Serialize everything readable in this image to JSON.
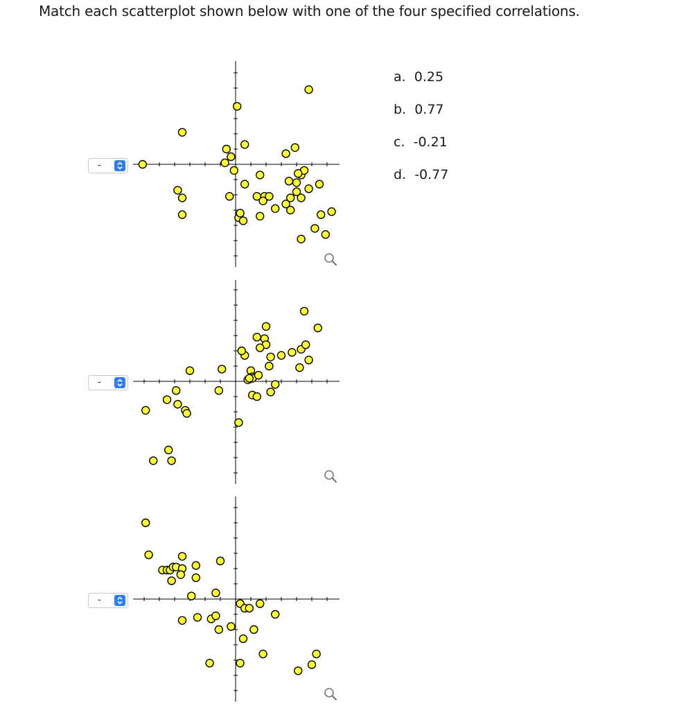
{
  "question": "Match each scatterplot shown below with one of the four specified correlations.",
  "options": [
    {
      "letter": "a.",
      "value": "0.25"
    },
    {
      "letter": "b.",
      "value": "0.77"
    },
    {
      "letter": "c.",
      "value": "-0.21"
    },
    {
      "letter": "d.",
      "value": "-0.77"
    }
  ],
  "selects": [
    {
      "selected": "-"
    },
    {
      "selected": "-"
    },
    {
      "selected": "-"
    }
  ],
  "icons": {
    "select_arrows": "up-down-chevron-icon",
    "magnify": "magnifier-icon"
  },
  "colors": {
    "point_fill": "#ffff33",
    "point_stroke": "#000000",
    "select_accent": "#2f7ef0",
    "axis": "#000000"
  },
  "chart_data": [
    {
      "type": "scatter",
      "grid": false,
      "points": [
        [
          -6.1,
          0
        ],
        [
          -3.5,
          2.1
        ],
        [
          -3.8,
          -1.7
        ],
        [
          -3.5,
          -2.2
        ],
        [
          -3.5,
          -3.3
        ],
        [
          0.1,
          3.8
        ],
        [
          0.6,
          1.3
        ],
        [
          -0.6,
          1
        ],
        [
          -0.3,
          0.5
        ],
        [
          -0.7,
          0.1
        ],
        [
          -0.1,
          -0.4
        ],
        [
          1.6,
          -0.7
        ],
        [
          0.6,
          -1.3
        ],
        [
          -0.4,
          -2.1
        ],
        [
          1.4,
          -2.1
        ],
        [
          1.9,
          -2.1
        ],
        [
          1.8,
          -2.4
        ],
        [
          2.2,
          -2.1
        ],
        [
          2.6,
          -2.9
        ],
        [
          3.6,
          -3
        ],
        [
          3.3,
          -2.6
        ],
        [
          3.6,
          -2.2
        ],
        [
          4,
          -1.8
        ],
        [
          4.3,
          -2.2
        ],
        [
          4.8,
          -1.6
        ],
        [
          5.5,
          -1.3
        ],
        [
          4,
          -1.2
        ],
        [
          3.5,
          -1.1
        ],
        [
          4.3,
          -0.7
        ],
        [
          4.5,
          -0.4
        ],
        [
          4.1,
          -0.6
        ],
        [
          3.3,
          0.7
        ],
        [
          3.9,
          1.1
        ],
        [
          4.8,
          4.9
        ],
        [
          0.2,
          -3.5
        ],
        [
          0.5,
          -3.7
        ],
        [
          1.6,
          -3.4
        ],
        [
          0.3,
          -3.2
        ],
        [
          5.2,
          -4.2
        ],
        [
          4.3,
          -4.9
        ],
        [
          5.6,
          -3.3
        ],
        [
          6.3,
          -3.1
        ],
        [
          5.9,
          -4.6
        ]
      ]
    },
    {
      "type": "scatter",
      "grid": false,
      "points": [
        [
          -5.9,
          -1.9
        ],
        [
          -4.5,
          -1.2
        ],
        [
          -3.8,
          -1.5
        ],
        [
          -3.3,
          -1.9
        ],
        [
          -3.2,
          -2.1
        ],
        [
          -4.2,
          -5.2
        ],
        [
          -4.4,
          -4.5
        ],
        [
          -5.4,
          -5.2
        ],
        [
          -3.9,
          -0.6
        ],
        [
          -3.0,
          0.7
        ],
        [
          -0.9,
          0.8
        ],
        [
          -1.1,
          -0.6
        ],
        [
          1.0,
          0.7
        ],
        [
          1.1,
          0.3
        ],
        [
          1.1,
          0.2
        ],
        [
          1.5,
          0.4
        ],
        [
          0.8,
          0.1
        ],
        [
          0.9,
          0.2
        ],
        [
          0.6,
          1.7
        ],
        [
          0.4,
          2.0
        ],
        [
          1.4,
          2.9
        ],
        [
          1.9,
          2.8
        ],
        [
          2.0,
          2.4
        ],
        [
          1.6,
          2.2
        ],
        [
          2.0,
          3.6
        ],
        [
          2.2,
          1.0
        ],
        [
          2.3,
          1.6
        ],
        [
          3.0,
          1.7
        ],
        [
          3.7,
          1.9
        ],
        [
          4.3,
          2.1
        ],
        [
          4.6,
          2.4
        ],
        [
          4.2,
          0.9
        ],
        [
          4.8,
          1.4
        ],
        [
          5.4,
          3.5
        ],
        [
          4.5,
          4.6
        ],
        [
          2.6,
          -0.2
        ],
        [
          2.3,
          -0.7
        ],
        [
          1.1,
          -0.9
        ],
        [
          1.4,
          -1.0
        ],
        [
          0.2,
          -2.7
        ]
      ]
    },
    {
      "type": "scatter",
      "grid": false,
      "points": [
        [
          -5.9,
          5.0
        ],
        [
          -5.7,
          2.9
        ],
        [
          -4.8,
          1.9
        ],
        [
          -4.5,
          1.9
        ],
        [
          -4.3,
          1.9
        ],
        [
          -4.1,
          2.1
        ],
        [
          -3.9,
          2.1
        ],
        [
          -4.2,
          1.2
        ],
        [
          -3.5,
          2.0
        ],
        [
          -3.6,
          1.6
        ],
        [
          -3.5,
          2.8
        ],
        [
          -2.6,
          2.2
        ],
        [
          -2.6,
          1.4
        ],
        [
          -2.9,
          0.2
        ],
        [
          -1.0,
          2.5
        ],
        [
          -1.3,
          0.4
        ],
        [
          0.3,
          -0.3
        ],
        [
          0.6,
          -0.6
        ],
        [
          0.9,
          -0.6
        ],
        [
          1.6,
          -0.3
        ],
        [
          2.6,
          -1.0
        ],
        [
          -1.6,
          -1.3
        ],
        [
          -1.3,
          -1.1
        ],
        [
          -2.5,
          -1.2
        ],
        [
          -3.5,
          -1.4
        ],
        [
          -1.1,
          -2.0
        ],
        [
          -0.3,
          -1.8
        ],
        [
          1.2,
          -2.0
        ],
        [
          0.5,
          -2.6
        ],
        [
          1.8,
          -3.6
        ],
        [
          0.3,
          -4.2
        ],
        [
          -1.7,
          -4.2
        ],
        [
          5.3,
          -3.6
        ],
        [
          5.0,
          -4.3
        ],
        [
          4.1,
          -4.7
        ]
      ]
    }
  ]
}
